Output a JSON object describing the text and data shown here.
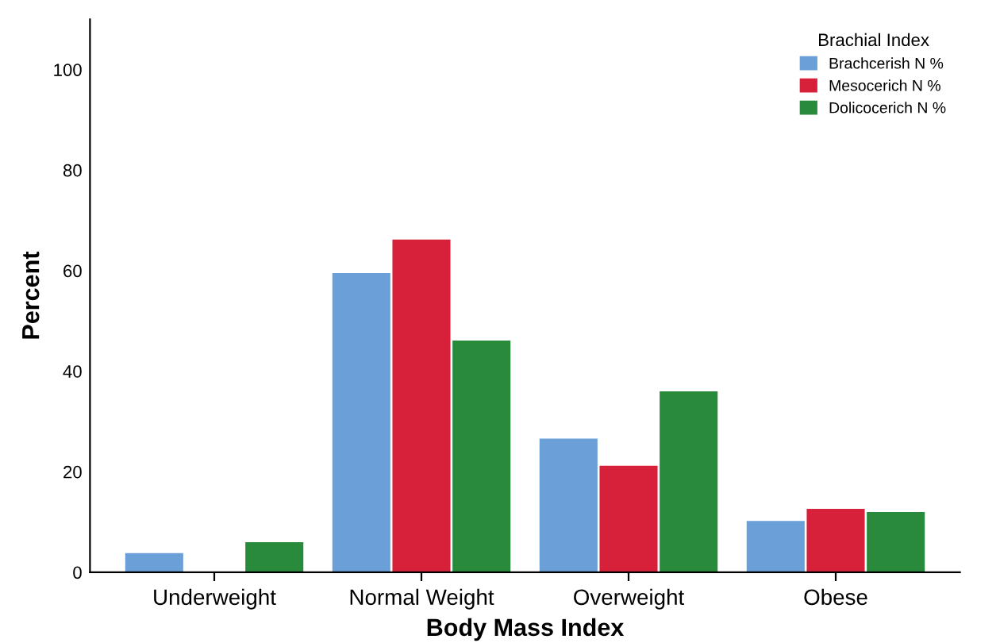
{
  "chart_data": {
    "type": "bar",
    "xlabel": "Body Mass Index",
    "ylabel": "Percent",
    "legend_title": "Brachial Index",
    "categories": [
      "Underweight",
      "Normal Weight",
      "Overweight",
      "Obese"
    ],
    "series": [
      {
        "name": "Brachcerish N %",
        "color": "#6a9fd8",
        "values": [
          3.8,
          59.5,
          26.6,
          10.2
        ]
      },
      {
        "name": "Mesocerich N %",
        "color": "#d7213a",
        "values": [
          0,
          66.2,
          21.2,
          12.6
        ]
      },
      {
        "name": "Dolicocerich N %",
        "color": "#2a8a3c",
        "values": [
          6,
          46.1,
          36,
          12
        ]
      }
    ],
    "ylim": [
      0,
      110
    ],
    "yticks": [
      0,
      20,
      40,
      60,
      80,
      100
    ],
    "grid": false,
    "legend": "top right"
  }
}
